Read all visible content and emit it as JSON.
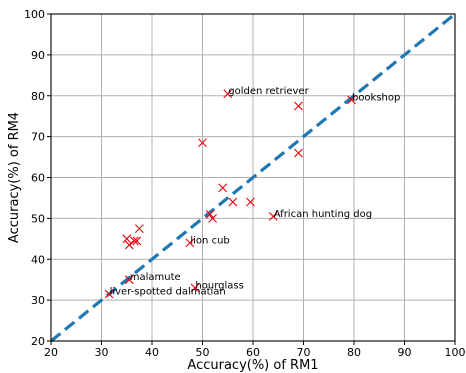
{
  "chart_data": {
    "type": "scatter",
    "title": "",
    "xlabel": "Accuracy(%) of RM1",
    "ylabel": "Accuracy(%) of RM4",
    "xlim": [
      20,
      100
    ],
    "ylim": [
      20,
      100
    ],
    "xticks": [
      20,
      30,
      40,
      50,
      60,
      70,
      80,
      90,
      100
    ],
    "yticks": [
      20,
      30,
      40,
      50,
      60,
      70,
      80,
      90,
      100
    ],
    "grid": true,
    "marker": "x",
    "marker_color": "#e8000b",
    "reference_line": {
      "style": "dashed",
      "color": "#1f77b4",
      "from": [
        20,
        20
      ],
      "to": [
        100,
        100
      ]
    },
    "points": [
      {
        "x": 55,
        "y": 80.5
      },
      {
        "x": 69,
        "y": 77.5
      },
      {
        "x": 79.5,
        "y": 79
      },
      {
        "x": 50,
        "y": 68.5
      },
      {
        "x": 69,
        "y": 66
      },
      {
        "x": 54,
        "y": 57.5
      },
      {
        "x": 51.5,
        "y": 51
      },
      {
        "x": 52,
        "y": 50
      },
      {
        "x": 56,
        "y": 54
      },
      {
        "x": 59.5,
        "y": 54
      },
      {
        "x": 64,
        "y": 50.5
      },
      {
        "x": 37.5,
        "y": 47.5
      },
      {
        "x": 35,
        "y": 45
      },
      {
        "x": 36.5,
        "y": 44.5
      },
      {
        "x": 37,
        "y": 44.5
      },
      {
        "x": 35.5,
        "y": 43.5
      },
      {
        "x": 47.5,
        "y": 44
      },
      {
        "x": 35.5,
        "y": 35
      },
      {
        "x": 48.5,
        "y": 33
      },
      {
        "x": 31.5,
        "y": 31.5
      }
    ],
    "annotations": [
      {
        "text": "golden retriever",
        "x": 55,
        "y": 80.5
      },
      {
        "text": "bookshop",
        "x": 79.5,
        "y": 79
      },
      {
        "text": "African hunting dog",
        "x": 64,
        "y": 50.5
      },
      {
        "text": "lion cub",
        "x": 47.5,
        "y": 44
      },
      {
        "text": "malamute",
        "x": 35.5,
        "y": 35
      },
      {
        "text": "hourglass",
        "x": 48.5,
        "y": 33
      },
      {
        "text": "liver-spotted dalmatian",
        "x": 31.5,
        "y": 31.5
      }
    ]
  }
}
